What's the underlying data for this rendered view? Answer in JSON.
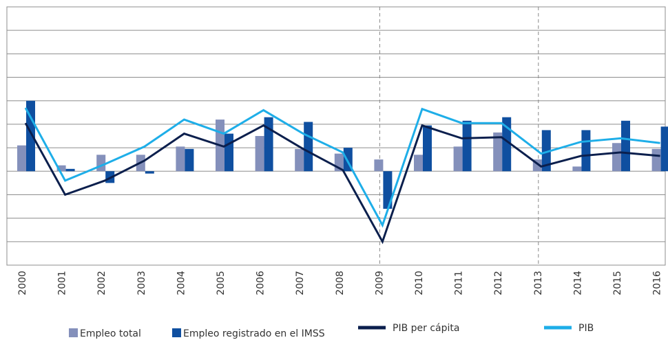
{
  "chart_data": {
    "type": "bar",
    "categories": [
      "2000",
      "2001",
      "2002",
      "2003",
      "2004",
      "2005",
      "2006",
      "2007",
      "2008",
      "2009",
      "2010",
      "2011",
      "2012",
      "2013",
      "2014",
      "2015",
      "2016"
    ],
    "series": [
      {
        "name": "Empleo total",
        "type": "bar",
        "color": "#8490bb",
        "values": [
          2.2,
          0.5,
          1.4,
          1.4,
          2.1,
          4.4,
          3.0,
          1.9,
          1.5,
          1.0,
          1.4,
          2.1,
          3.3,
          1.0,
          0.4,
          2.4,
          1.9
        ]
      },
      {
        "name": "Empleo registrado en el IMSS",
        "type": "bar",
        "color": "#0f4fa0",
        "values": [
          6.0,
          0.2,
          -1.0,
          -0.2,
          1.9,
          3.2,
          4.6,
          4.2,
          2.0,
          -3.2,
          3.9,
          4.3,
          4.6,
          3.5,
          3.5,
          4.3,
          3.8
        ]
      },
      {
        "name": "PIB per cápita",
        "type": "line",
        "color": "#0b1f4d",
        "values": [
          4.1,
          -2.0,
          -0.8,
          0.9,
          3.2,
          2.1,
          3.9,
          1.9,
          0.1,
          -6.0,
          3.9,
          2.8,
          2.9,
          0.4,
          1.3,
          1.6,
          1.3
        ]
      },
      {
        "name": "PIB",
        "type": "line",
        "color": "#1eaee8",
        "values": [
          5.4,
          -0.8,
          0.6,
          2.1,
          4.4,
          3.2,
          5.2,
          3.2,
          1.6,
          -4.6,
          5.3,
          4.1,
          4.1,
          1.5,
          2.5,
          2.8,
          2.4
        ]
      }
    ],
    "ylim": [
      -8,
      14
    ],
    "yticks": [
      -8,
      -6,
      -4,
      -2,
      0,
      2,
      4,
      6,
      8,
      10,
      12,
      14
    ],
    "grid": true,
    "dashed_categories": [
      "2009",
      "2013"
    ],
    "legend": "bottom"
  }
}
